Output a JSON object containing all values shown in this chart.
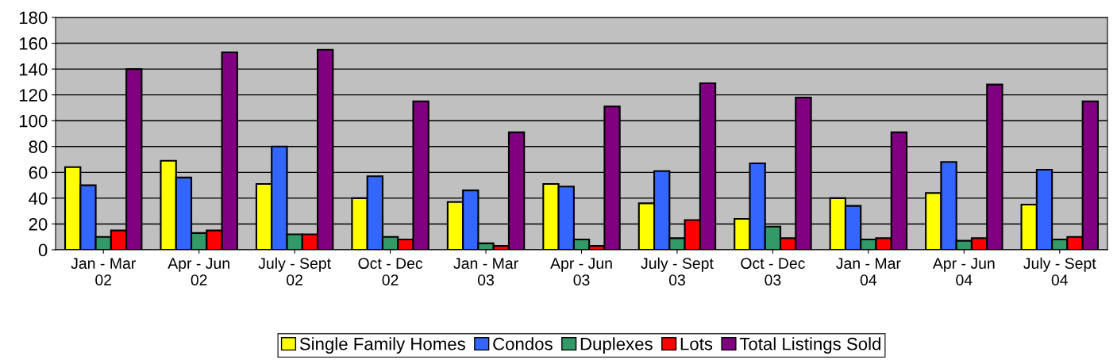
{
  "chart_data": {
    "type": "bar",
    "categories": [
      "Jan - Mar\n02",
      "Apr - Jun\n02",
      "July - Sept\n02",
      "Oct - Dec\n02",
      "Jan - Mar\n03",
      "Apr - Jun\n03",
      "July - Sept\n03",
      "Oct - Dec\n03",
      "Jan - Mar\n04",
      "Apr - Jun\n04",
      "July - Sept\n04"
    ],
    "series": [
      {
        "name": "Single Family Homes",
        "color": "#ffff00",
        "values": [
          64,
          69,
          51,
          40,
          37,
          51,
          36,
          24,
          40,
          44,
          35
        ]
      },
      {
        "name": "Condos",
        "color": "#3366ff",
        "values": [
          50,
          56,
          80,
          57,
          46,
          49,
          61,
          67,
          34,
          68,
          62
        ]
      },
      {
        "name": "Duplexes",
        "color": "#339966",
        "values": [
          10,
          13,
          12,
          10,
          5,
          8,
          9,
          18,
          8,
          7,
          8
        ]
      },
      {
        "name": "Lots",
        "color": "#ff0000",
        "values": [
          15,
          15,
          12,
          8,
          3,
          3,
          23,
          9,
          9,
          9,
          10
        ]
      },
      {
        "name": "Total Listings Sold",
        "color": "#800080",
        "values": [
          140,
          153,
          155,
          115,
          91,
          111,
          129,
          118,
          91,
          128,
          115
        ]
      }
    ],
    "ylim": [
      0,
      180
    ],
    "yticks": [
      0,
      20,
      40,
      60,
      80,
      100,
      120,
      140,
      160,
      180
    ],
    "grid": "y",
    "legend": "bottom"
  }
}
